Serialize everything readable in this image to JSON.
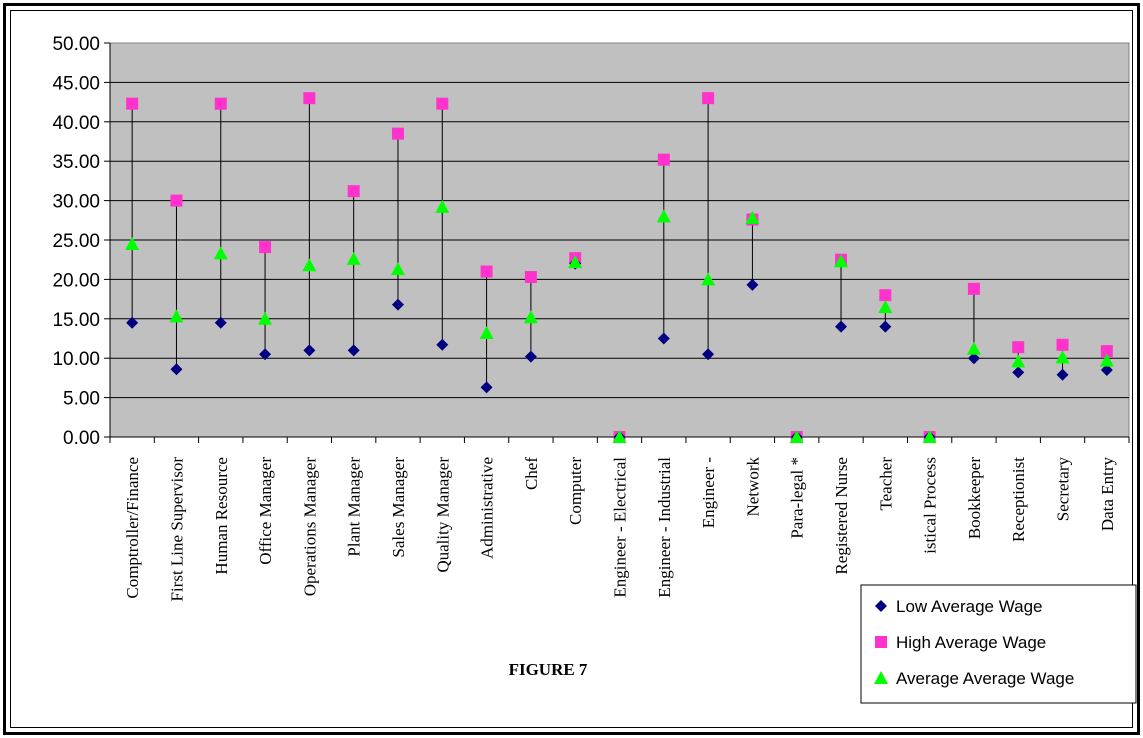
{
  "chart_data": {
    "type": "scatter",
    "title": "FIGURE 7",
    "xlabel": "",
    "ylabel": "",
    "ylim": [
      0,
      50
    ],
    "yticks": [
      "0.00",
      "5.00",
      "10.00",
      "15.00",
      "20.00",
      "25.00",
      "30.00",
      "35.00",
      "40.00",
      "45.00",
      "50.00"
    ],
    "grid": true,
    "legend_position": "bottom-right",
    "categories": [
      "Comptroller/Finance",
      "First Line Supervisor",
      "Human Resource",
      "Office Manager",
      "Operations Manager",
      "Plant Manager",
      "Sales Manager",
      "Quality Manager",
      "Administrative",
      "Chef",
      "Computer",
      "Engineer - Electrical",
      "Engineer - Industrial",
      "Engineer -",
      "Network",
      "Para-legal  *",
      "Registered Nurse",
      "Teacher",
      "istical Process",
      "Bookkeeper",
      "Receptionist",
      "Secretary",
      "Data Entry"
    ],
    "series": [
      {
        "name": "Low  Average Wage",
        "color": "#000080",
        "marker": "diamond",
        "values": [
          14.5,
          8.6,
          14.5,
          10.5,
          11.0,
          11.0,
          16.8,
          11.7,
          6.3,
          10.2,
          22.0,
          0,
          12.5,
          10.5,
          19.3,
          0,
          14.0,
          14.0,
          0,
          10.0,
          8.2,
          7.9,
          8.5
        ]
      },
      {
        "name": "High Average Wage",
        "color": "#ff33cc",
        "marker": "square",
        "values": [
          42.3,
          30.0,
          42.3,
          24.1,
          43.0,
          31.2,
          38.5,
          42.3,
          21.0,
          20.3,
          22.7,
          0,
          35.2,
          43.0,
          27.6,
          0,
          22.5,
          18.0,
          0,
          18.8,
          11.4,
          11.7,
          10.9
        ]
      },
      {
        "name": "Average Average Wage",
        "color": "#00ff00",
        "marker": "triangle",
        "values": [
          24.5,
          15.3,
          23.3,
          15.0,
          21.8,
          22.6,
          21.3,
          29.2,
          13.2,
          15.2,
          22.2,
          0,
          28.0,
          20.0,
          27.8,
          0,
          22.3,
          16.5,
          0,
          11.2,
          9.6,
          10.1,
          9.7
        ]
      }
    ]
  }
}
